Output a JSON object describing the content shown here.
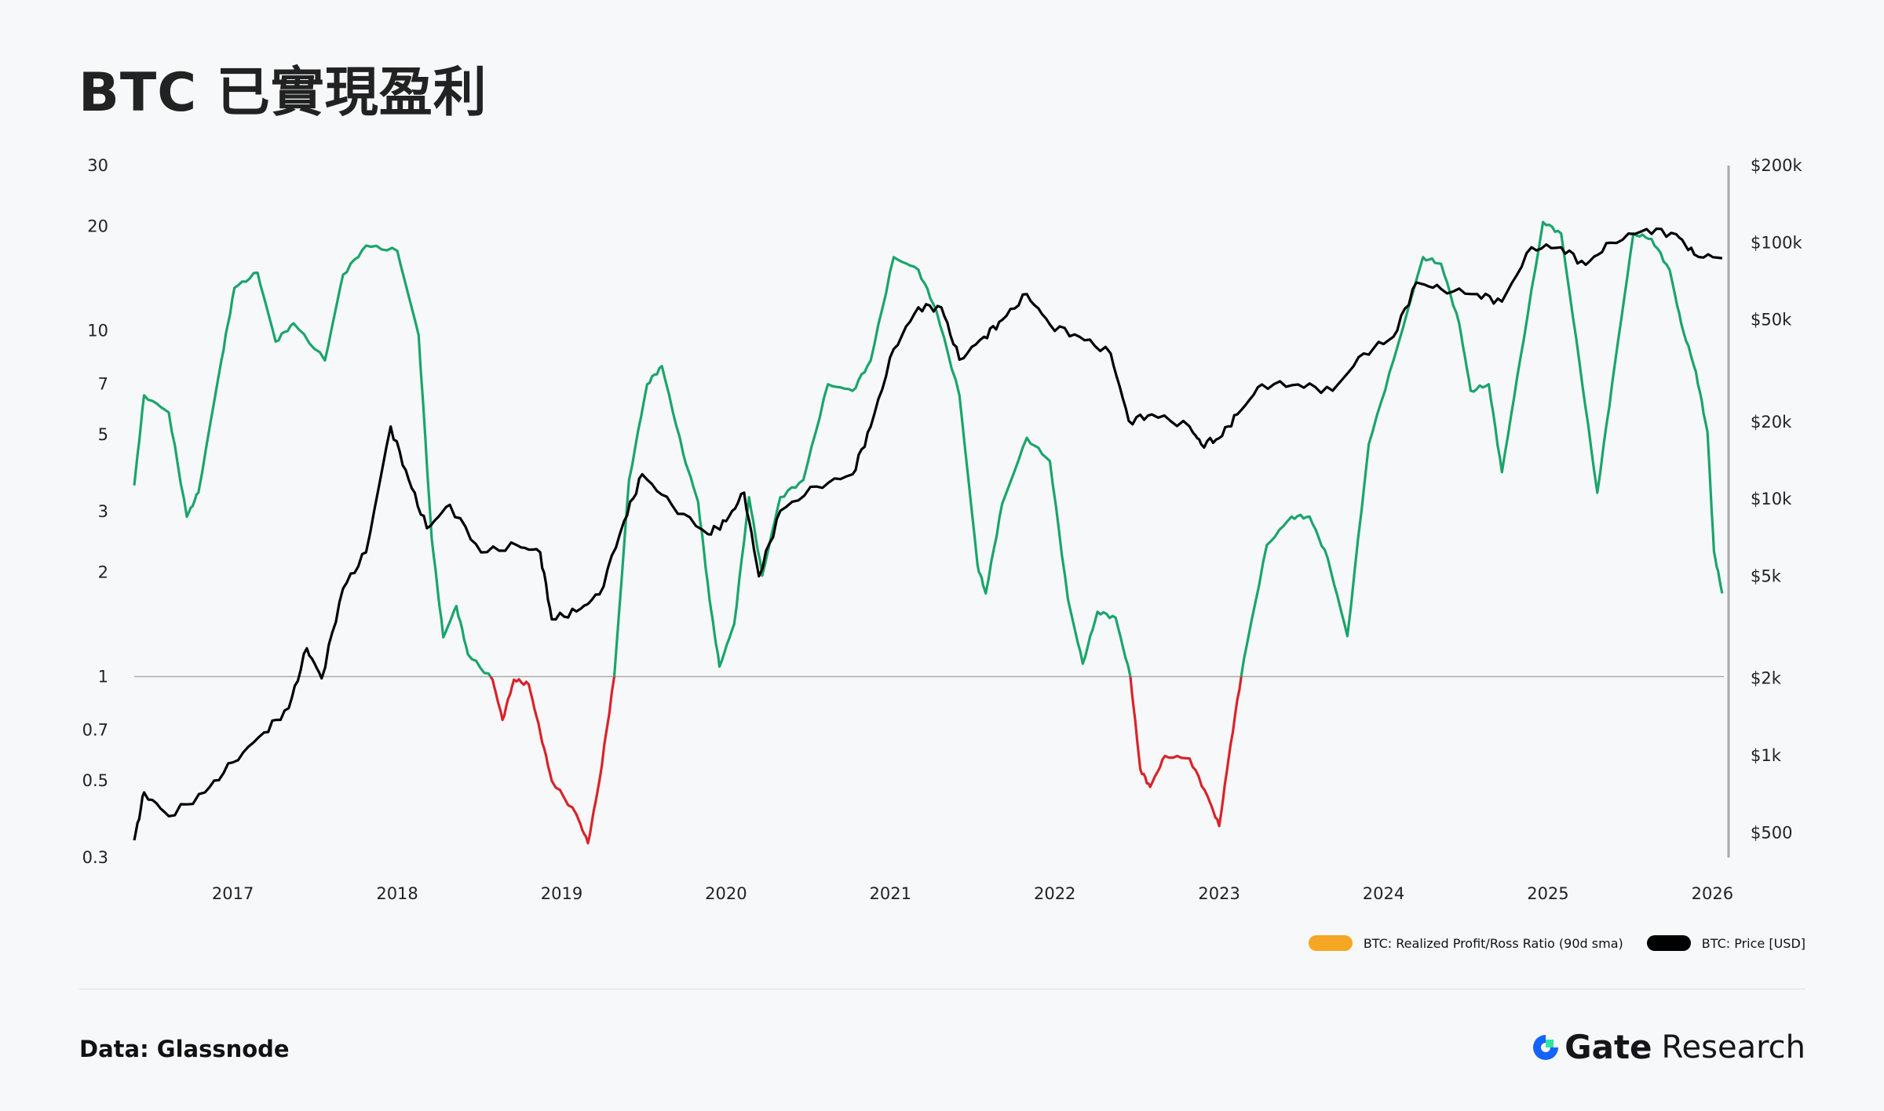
{
  "title": "BTC 已實現盈利",
  "source": "Data: Glassnode",
  "brand": {
    "name": "Gate",
    "suffix": "Research"
  },
  "colors": {
    "ratio_above": "#1aa56b",
    "ratio_below": "#d9232a",
    "price": "#000000",
    "legend_ratio": "#f5a623",
    "legend_price": "#000000",
    "reference": "#aaaaaa"
  },
  "legend": [
    {
      "label": "BTC: Realized Profit/Ross Ratio (90d sma)",
      "color": "#f5a623"
    },
    {
      "label": "BTC: Price [USD]",
      "color": "#000000"
    }
  ],
  "chart_data": {
    "type": "line",
    "title": "BTC 已實現盈利",
    "x_range": [
      2016.4,
      2026.07
    ],
    "x_ticks": [
      {
        "v": 2017,
        "label": "2017"
      },
      {
        "v": 2018,
        "label": "2018"
      },
      {
        "v": 2019,
        "label": "2019"
      },
      {
        "v": 2020,
        "label": "2020"
      },
      {
        "v": 2021,
        "label": "2021"
      },
      {
        "v": 2022,
        "label": "2022"
      },
      {
        "v": 2023,
        "label": "2023"
      },
      {
        "v": 2024,
        "label": "2024"
      },
      {
        "v": 2025,
        "label": "2025"
      },
      {
        "v": 2026,
        "label": "2026"
      }
    ],
    "left_axis": {
      "scale": "log",
      "range": [
        0.3,
        30
      ],
      "ticks": [
        {
          "v": 30,
          "label": "30"
        },
        {
          "v": 20,
          "label": "20"
        },
        {
          "v": 10,
          "label": "10"
        },
        {
          "v": 7,
          "label": "7"
        },
        {
          "v": 5,
          "label": "5"
        },
        {
          "v": 3,
          "label": "3"
        },
        {
          "v": 2,
          "label": "2"
        },
        {
          "v": 1,
          "label": "1"
        },
        {
          "v": 0.7,
          "label": "0.7"
        },
        {
          "v": 0.5,
          "label": "0.5"
        },
        {
          "v": 0.3,
          "label": "0.3"
        }
      ]
    },
    "right_axis": {
      "scale": "log",
      "range": [
        400,
        200000
      ],
      "ticks": [
        {
          "v": 200000,
          "label": "$200k"
        },
        {
          "v": 100000,
          "label": "$100k"
        },
        {
          "v": 50000,
          "label": "$50k"
        },
        {
          "v": 20000,
          "label": "$20k"
        },
        {
          "v": 10000,
          "label": "$10k"
        },
        {
          "v": 5000,
          "label": "$5k"
        },
        {
          "v": 2000,
          "label": "$2k"
        },
        {
          "v": 1000,
          "label": "$1k"
        },
        {
          "v": 500,
          "label": "$500"
        }
      ]
    },
    "reference_line": 1,
    "series": [
      {
        "name": "BTC: Realized Profit/Ross Ratio (90d sma)",
        "axis": "left",
        "points": [
          [
            2016.4,
            3.57
          ],
          [
            2016.46,
            6.5
          ],
          [
            2016.61,
            5.8
          ],
          [
            2016.72,
            2.9
          ],
          [
            2016.79,
            3.4
          ],
          [
            2016.93,
            8.2
          ],
          [
            2017.01,
            13.3
          ],
          [
            2017.15,
            14.7
          ],
          [
            2017.26,
            9.3
          ],
          [
            2017.37,
            10.5
          ],
          [
            2017.56,
            8.2
          ],
          [
            2017.67,
            14.5
          ],
          [
            2017.81,
            17.6
          ],
          [
            2018.0,
            17
          ],
          [
            2018.13,
            9.7
          ],
          [
            2018.21,
            2.5
          ],
          [
            2018.28,
            1.3
          ],
          [
            2018.36,
            1.6
          ],
          [
            2018.43,
            1.16
          ],
          [
            2018.58,
            0.98
          ],
          [
            2018.64,
            0.75
          ],
          [
            2018.71,
            0.98
          ],
          [
            2018.8,
            0.95
          ],
          [
            2018.87,
            0.69
          ],
          [
            2018.94,
            0.5
          ],
          [
            2019.09,
            0.4
          ],
          [
            2019.16,
            0.33
          ],
          [
            2019.23,
            0.5
          ],
          [
            2019.32,
            1.0
          ],
          [
            2019.41,
            3.7
          ],
          [
            2019.52,
            7.0
          ],
          [
            2019.61,
            7.9
          ],
          [
            2019.74,
            4.4
          ],
          [
            2019.83,
            3.2
          ],
          [
            2019.9,
            1.67
          ],
          [
            2019.96,
            1.07
          ],
          [
            2020.05,
            1.42
          ],
          [
            2020.14,
            3.3
          ],
          [
            2020.22,
            1.96
          ],
          [
            2020.33,
            3.3
          ],
          [
            2020.47,
            3.7
          ],
          [
            2020.62,
            7.0
          ],
          [
            2020.77,
            6.7
          ],
          [
            2020.88,
            8.2
          ],
          [
            2021.02,
            16.3
          ],
          [
            2021.17,
            15.0
          ],
          [
            2021.28,
            11.4
          ],
          [
            2021.42,
            6.5
          ],
          [
            2021.53,
            2.1
          ],
          [
            2021.58,
            1.74
          ],
          [
            2021.68,
            3.16
          ],
          [
            2021.83,
            4.9
          ],
          [
            2021.97,
            4.2
          ],
          [
            2022.08,
            1.67
          ],
          [
            2022.17,
            1.09
          ],
          [
            2022.26,
            1.54
          ],
          [
            2022.37,
            1.48
          ],
          [
            2022.46,
            1.0
          ],
          [
            2022.52,
            0.54
          ],
          [
            2022.58,
            0.48
          ],
          [
            2022.67,
            0.59
          ],
          [
            2022.82,
            0.58
          ],
          [
            2022.93,
            0.45
          ],
          [
            2023.0,
            0.37
          ],
          [
            2023.07,
            0.64
          ],
          [
            2023.15,
            1.12
          ],
          [
            2023.29,
            2.4
          ],
          [
            2023.44,
            2.9
          ],
          [
            2023.55,
            2.9
          ],
          [
            2023.66,
            2.2
          ],
          [
            2023.78,
            1.31
          ],
          [
            2023.91,
            4.7
          ],
          [
            2024.06,
            8.2
          ],
          [
            2024.24,
            16.3
          ],
          [
            2024.35,
            15.6
          ],
          [
            2024.46,
            10.5
          ],
          [
            2024.53,
            6.7
          ],
          [
            2024.64,
            7.0
          ],
          [
            2024.72,
            3.9
          ],
          [
            2024.83,
            8.2
          ],
          [
            2024.97,
            20.6
          ],
          [
            2025.08,
            19.1
          ],
          [
            2025.19,
            8.2
          ],
          [
            2025.3,
            3.4
          ],
          [
            2025.41,
            8.2
          ],
          [
            2025.52,
            19.1
          ],
          [
            2025.63,
            18.4
          ],
          [
            2025.74,
            15.0
          ],
          [
            2025.81,
            10.5
          ],
          [
            2025.9,
            7.6
          ],
          [
            2025.97,
            5.1
          ],
          [
            2026.01,
            2.3
          ],
          [
            2026.06,
            1.74
          ]
        ]
      },
      {
        "name": "BTC: Price [USD]",
        "axis": "right",
        "points": [
          [
            2016.4,
            467
          ],
          [
            2016.46,
            718
          ],
          [
            2016.61,
            580
          ],
          [
            2016.83,
            718
          ],
          [
            2017.0,
            940
          ],
          [
            2017.19,
            1230
          ],
          [
            2017.34,
            1530
          ],
          [
            2017.45,
            2620
          ],
          [
            2017.54,
            2000
          ],
          [
            2017.67,
            4480
          ],
          [
            2017.81,
            6200
          ],
          [
            2017.96,
            19200
          ],
          [
            2018.07,
            11900
          ],
          [
            2018.18,
            7700
          ],
          [
            2018.32,
            9500
          ],
          [
            2018.51,
            6200
          ],
          [
            2018.73,
            6600
          ],
          [
            2018.87,
            6200
          ],
          [
            2018.94,
            3400
          ],
          [
            2019.09,
            3650
          ],
          [
            2019.23,
            4250
          ],
          [
            2019.38,
            8200
          ],
          [
            2019.49,
            12500
          ],
          [
            2019.67,
            9500
          ],
          [
            2019.89,
            7300
          ],
          [
            2020.0,
            8200
          ],
          [
            2020.11,
            10600
          ],
          [
            2020.2,
            5000
          ],
          [
            2020.33,
            9000
          ],
          [
            2020.55,
            11200
          ],
          [
            2020.77,
            12500
          ],
          [
            2020.88,
            19200
          ],
          [
            2021.02,
            38500
          ],
          [
            2021.17,
            56000
          ],
          [
            2021.31,
            56000
          ],
          [
            2021.42,
            35000
          ],
          [
            2021.57,
            43000
          ],
          [
            2021.68,
            50000
          ],
          [
            2021.83,
            63000
          ],
          [
            2021.97,
            48000
          ],
          [
            2022.15,
            43000
          ],
          [
            2022.34,
            37000
          ],
          [
            2022.45,
            20200
          ],
          [
            2022.59,
            21400
          ],
          [
            2022.82,
            19200
          ],
          [
            2022.89,
            16400
          ],
          [
            2023.0,
            17300
          ],
          [
            2023.11,
            21400
          ],
          [
            2023.26,
            28000
          ],
          [
            2023.48,
            28000
          ],
          [
            2023.69,
            26500
          ],
          [
            2023.88,
            37000
          ],
          [
            2024.06,
            43000
          ],
          [
            2024.2,
            70000
          ],
          [
            2024.35,
            66000
          ],
          [
            2024.57,
            63000
          ],
          [
            2024.72,
            59000
          ],
          [
            2024.9,
            96000
          ],
          [
            2025.08,
            96000
          ],
          [
            2025.23,
            82000
          ],
          [
            2025.38,
            100000
          ],
          [
            2025.6,
            113000
          ],
          [
            2025.78,
            108000
          ],
          [
            2025.89,
            90000
          ],
          [
            2026.06,
            87000
          ]
        ]
      }
    ]
  }
}
